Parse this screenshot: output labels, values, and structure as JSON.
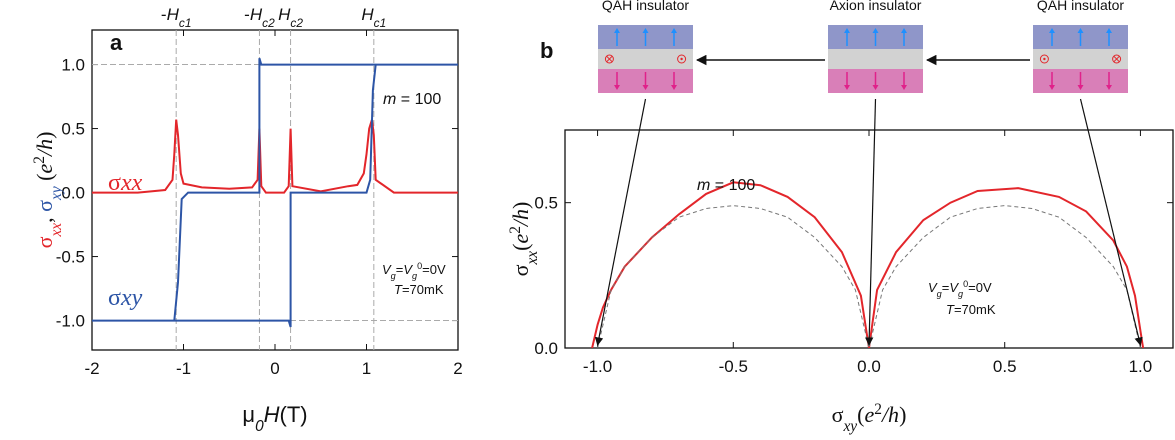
{
  "chart_data": [
    {
      "type": "line",
      "panel_label": "a",
      "xlabel": [
        {
          "text": "μ"
        },
        {
          "sub": "0"
        },
        {
          "i": "H"
        },
        {
          "text": "(T)"
        }
      ],
      "ylabel": [
        {
          "text": "σ",
          "color": "#e3262b"
        },
        {
          "sub": "xx",
          "color": "#e3262b"
        },
        {
          "text": ", "
        },
        {
          "text": "σ",
          "color": "#2d55a6"
        },
        {
          "sub": "xy",
          "color": "#2d55a6"
        },
        {
          "text": " ("
        },
        {
          "i": "e"
        },
        {
          "sup": "2"
        },
        {
          "i": "/h"
        },
        {
          "text": ")"
        }
      ],
      "xlim": [
        -2,
        2
      ],
      "ylim": [
        -1.23,
        1.27
      ],
      "xticks": [
        -2,
        -1,
        0,
        1,
        2
      ],
      "yticks": [
        {
          "value": -1,
          "label": "-1.0"
        },
        {
          "value": -0.5,
          "label": "-0.5"
        },
        {
          "value": 0,
          "label": "0.0"
        },
        {
          "value": 0.5,
          "label": "0.5"
        },
        {
          "value": 1,
          "label": "1.0"
        }
      ],
      "hlines": [
        -1,
        1
      ],
      "top_labels": [
        {
          "x": -1.08,
          "label": [
            {
              "text": "-"
            },
            {
              "i": "H"
            },
            {
              "sub": "c1"
            }
          ]
        },
        {
          "x": -0.17,
          "label": [
            {
              "text": "-"
            },
            {
              "i": "H"
            },
            {
              "sub": "c2"
            }
          ]
        },
        {
          "x": 0.17,
          "label": [
            {
              "i": "H"
            },
            {
              "sub": "c2"
            }
          ]
        },
        {
          "x": 1.08,
          "label": [
            {
              "i": "H"
            },
            {
              "sub": "c1"
            }
          ]
        }
      ],
      "series": [
        {
          "name": [
            {
              "text": "σ"
            },
            {
              "i": "xx"
            }
          ],
          "color": "#e3262b",
          "x": [
            -2,
            -1.5,
            -1.2,
            -1.12,
            -1.1,
            -1.08,
            -1.06,
            -1.03,
            -1.0,
            -0.8,
            -0.5,
            -0.25,
            -0.19,
            -0.17,
            -0.15,
            -0.1,
            0.1,
            0.15,
            0.17,
            0.19,
            0.5,
            0.8,
            0.9,
            0.97,
            1.0,
            1.03,
            1.06,
            1.08,
            1.1,
            1.3,
            2
          ],
          "values": [
            0,
            0,
            0.02,
            0.1,
            0.3,
            0.57,
            0.45,
            0.15,
            0.07,
            0.04,
            0.03,
            0.04,
            0.1,
            0.5,
            0.05,
            0,
            0,
            0.05,
            0.5,
            0.05,
            0.01,
            0.05,
            0.06,
            0.15,
            0.3,
            0.5,
            0.57,
            0.45,
            0.1,
            0,
            0
          ]
        },
        {
          "name": [
            {
              "text": "σ"
            },
            {
              "i": "xy"
            }
          ],
          "color": "#2d55a6",
          "x": [
            -2,
            -1.5,
            -1,
            -0.5,
            0,
            0.15,
            0.17,
            0.17,
            0.2,
            0.5,
            1.0,
            1.04,
            1.07,
            1.1,
            1.5,
            2,
            null,
            2,
            1.5,
            1,
            0.5,
            0,
            -0.15,
            -0.17,
            -0.17,
            -0.2,
            -0.5,
            -0.95,
            -1.02,
            -1.06,
            -1.1,
            -1.5,
            -2
          ],
          "values": [
            -1,
            -1,
            -1,
            -1,
            -1,
            -1,
            -1.05,
            0,
            0,
            0,
            0,
            0.1,
            0.8,
            1,
            1,
            1,
            null,
            1,
            1,
            1,
            1,
            1,
            1,
            1.05,
            0,
            0,
            0,
            0,
            -0.05,
            -0.7,
            -1,
            -1,
            -1
          ]
        }
      ],
      "annotations": [
        [
          {
            "i": "m"
          },
          {
            "text": " = 100"
          }
        ],
        [
          {
            "i": "V"
          },
          {
            "sub": "g"
          },
          {
            "text": "="
          },
          {
            "i": "V"
          },
          {
            "sub": "g"
          },
          {
            "sup": "0"
          },
          {
            "text": "=0V"
          }
        ],
        [
          {
            "i": "T"
          },
          {
            "text": "=70mK"
          }
        ]
      ]
    },
    {
      "type": "line",
      "panel_label": "b",
      "xlabel": [
        {
          "text": "σ"
        },
        {
          "sub": "xy"
        },
        {
          "text": "("
        },
        {
          "i": "e"
        },
        {
          "sup": "2"
        },
        {
          "i": "/h"
        },
        {
          "text": ")"
        }
      ],
      "ylabel": [
        {
          "text": "σ"
        },
        {
          "sub": "xx"
        },
        {
          "text": "("
        },
        {
          "i": "e"
        },
        {
          "sup": "2"
        },
        {
          "i": "/h"
        },
        {
          "text": ")"
        }
      ],
      "xlim": [
        -1.12,
        1.12
      ],
      "ylim": [
        0,
        0.75
      ],
      "xticks": [
        {
          "value": -1,
          "label": "-1.0"
        },
        {
          "value": -0.5,
          "label": "-0.5"
        },
        {
          "value": 0,
          "label": "0.0"
        },
        {
          "value": 0.5,
          "label": "0.5"
        },
        {
          "value": 1,
          "label": "1.0"
        }
      ],
      "yticks": [
        {
          "value": 0,
          "label": "0.0"
        },
        {
          "value": 0.5,
          "label": "0.5"
        }
      ],
      "series": [
        {
          "color": "#e3262b",
          "dashed": false,
          "x": [
            -1.02,
            -1.0,
            -0.98,
            -0.95,
            -0.9,
            -0.8,
            -0.7,
            -0.6,
            -0.5,
            -0.4,
            -0.3,
            -0.2,
            -0.1,
            -0.03,
            0,
            0.03,
            0.1,
            0.2,
            0.3,
            0.4,
            0.55,
            0.7,
            0.8,
            0.9,
            0.95,
            0.98,
            1.0,
            1.01
          ],
          "values": [
            0,
            0.08,
            0.14,
            0.2,
            0.28,
            0.38,
            0.46,
            0.53,
            0.57,
            0.56,
            0.52,
            0.45,
            0.33,
            0.18,
            0,
            0.2,
            0.33,
            0.44,
            0.5,
            0.54,
            0.55,
            0.52,
            0.47,
            0.37,
            0.28,
            0.18,
            0.06,
            0
          ]
        },
        {
          "color": "#777777",
          "dashed": true,
          "x": [
            -1,
            -0.95,
            -0.9,
            -0.8,
            -0.7,
            -0.6,
            -0.5,
            -0.4,
            -0.3,
            -0.2,
            -0.1,
            -0.05,
            0,
            0.05,
            0.1,
            0.2,
            0.3,
            0.4,
            0.5,
            0.6,
            0.7,
            0.8,
            0.9,
            0.95,
            1
          ],
          "values": [
            0,
            0.2,
            0.28,
            0.38,
            0.45,
            0.48,
            0.49,
            0.48,
            0.45,
            0.38,
            0.28,
            0.2,
            0,
            0.2,
            0.28,
            0.38,
            0.45,
            0.48,
            0.49,
            0.48,
            0.45,
            0.38,
            0.28,
            0.2,
            0
          ]
        }
      ],
      "annotations": [
        [
          {
            "i": "m"
          },
          {
            "text": " = 100"
          }
        ],
        [
          {
            "i": "V"
          },
          {
            "sub": "g"
          },
          {
            "text": "="
          },
          {
            "i": "V"
          },
          {
            "sub": "g"
          },
          {
            "sup": "0"
          },
          {
            "text": "=0V"
          }
        ],
        [
          {
            "i": "T"
          },
          {
            "text": "=70mK"
          }
        ]
      ],
      "insets": [
        {
          "label": "QAH insulator",
          "x": -1
        },
        {
          "label": "Axion insulator",
          "x": 0
        },
        {
          "label": "QAH insulator",
          "x": 1
        }
      ]
    }
  ]
}
